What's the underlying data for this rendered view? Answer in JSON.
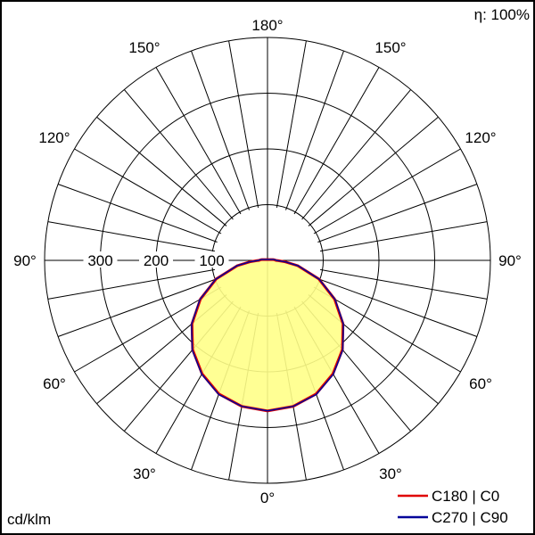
{
  "efficiency_label": "η: 100%",
  "unit_label": "cd/klm",
  "chart_data": {
    "type": "polar",
    "title": "",
    "angle_unit": "degrees",
    "angle_labels": [
      "0°",
      "30°",
      "60°",
      "90°",
      "120°",
      "150°",
      "180°"
    ],
    "radial_ticks": [
      100,
      200,
      300
    ],
    "radial_tick_labels": [
      "100",
      "200",
      "300"
    ],
    "r_max": 400,
    "grid": true,
    "legend_position": "bottom-right",
    "colors": {
      "C180_C0": "#e00000",
      "C270_C90": "#000099",
      "fill": "#ffff88"
    },
    "series": [
      {
        "name": "C180 | C0",
        "gamma": [
          0,
          10,
          20,
          30,
          40,
          50,
          60,
          70,
          80,
          85,
          88,
          90,
          92,
          95,
          98,
          100
        ],
        "intensity": [
          270,
          266,
          255,
          235,
          209,
          177,
          139,
          98,
          55,
          32,
          20,
          15,
          14,
          12,
          10,
          8
        ]
      },
      {
        "name": "C270 | C90",
        "gamma": [
          0,
          10,
          20,
          30,
          40,
          50,
          60,
          70,
          80,
          85,
          88,
          90,
          92,
          95,
          98,
          100
        ],
        "intensity": [
          270,
          266,
          256,
          236,
          210,
          178,
          140,
          99,
          56,
          33,
          21,
          16,
          15,
          13,
          11,
          9
        ]
      }
    ]
  }
}
